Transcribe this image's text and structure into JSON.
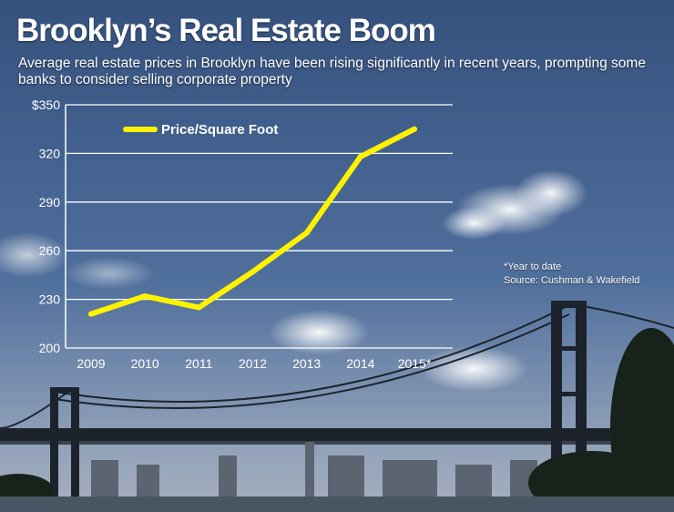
{
  "title": "Brooklyn’s Real Estate Boom",
  "subtitle": "Average real estate prices in Brooklyn have been rising significantly in recent years, prompting some banks to consider selling corporate property",
  "footnote": "*Year to date",
  "source": "Source: Cushman & Wakefield",
  "colors": {
    "line": "#fff200",
    "grid": "#ffffff",
    "text": "#ffffff",
    "sky_top": "#3a5a8a",
    "sky_bottom": "#8fa3bf"
  },
  "chart_data": {
    "type": "line",
    "categories": [
      "2009",
      "2010",
      "2011",
      "2012",
      "2013",
      "2014",
      "2015*"
    ],
    "series": [
      {
        "name": "Price/Square Foot",
        "values": [
          221,
          232,
          225,
          247,
          271,
          318,
          335
        ]
      }
    ],
    "ylim": [
      200,
      350
    ],
    "yticks": [
      200,
      230,
      260,
      290,
      320,
      350
    ],
    "ytick_labels": [
      "200",
      "230",
      "260",
      "290",
      "320",
      "$350"
    ],
    "grid": true,
    "legend": "top-left"
  }
}
